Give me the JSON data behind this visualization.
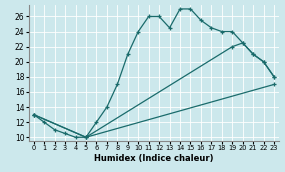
{
  "xlabel": "Humidex (Indice chaleur)",
  "xlim": [
    -0.5,
    23.5
  ],
  "ylim": [
    9.5,
    27.5
  ],
  "xticks": [
    0,
    1,
    2,
    3,
    4,
    5,
    6,
    7,
    8,
    9,
    10,
    11,
    12,
    13,
    14,
    15,
    16,
    17,
    18,
    19,
    20,
    21,
    22,
    23
  ],
  "yticks": [
    10,
    12,
    14,
    16,
    18,
    20,
    22,
    24,
    26
  ],
  "bg_color": "#cce8ec",
  "line_color": "#1a6b6b",
  "line1_x": [
    0,
    1,
    2,
    3,
    4,
    5,
    6,
    7,
    8,
    9,
    10,
    11,
    12,
    13,
    14,
    15,
    16,
    17,
    18,
    19,
    20,
    21,
    22,
    23
  ],
  "line1_y": [
    13,
    12,
    11,
    10.5,
    10,
    10,
    12,
    14,
    17,
    21,
    24,
    26,
    26,
    24.5,
    27,
    27,
    25.5,
    24.5,
    24,
    24,
    22.5,
    21,
    20,
    18
  ],
  "line2_x": [
    0,
    5,
    19,
    20,
    21,
    22,
    23
  ],
  "line2_y": [
    13,
    10,
    22,
    22.5,
    21,
    20,
    18
  ],
  "line3_x": [
    0,
    5,
    23
  ],
  "line3_y": [
    13,
    10,
    17
  ]
}
